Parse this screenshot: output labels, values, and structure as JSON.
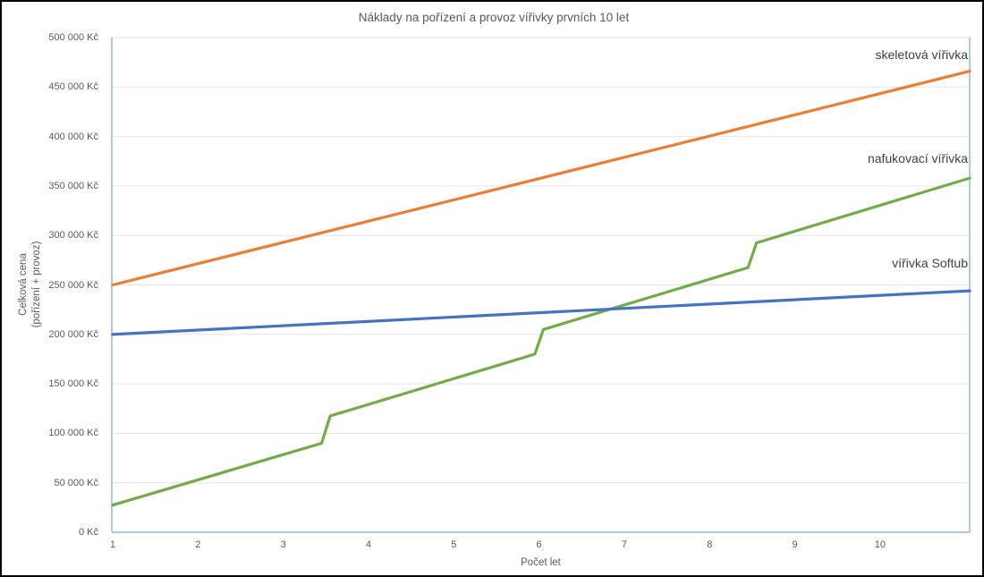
{
  "chart_data": {
    "type": "line",
    "title": "Náklady na pořízení a provoz vířivky prvních 10 let",
    "xlabel": "Počet let",
    "ylabel": "Celková cena (pořízení + provoz)",
    "ylabel_lines": [
      "Celková cena",
      "(pořízení + provoz)"
    ],
    "xlim": [
      1,
      11.05
    ],
    "ylim": [
      0,
      500000
    ],
    "x_ticks": [
      1,
      2,
      3,
      4,
      5,
      6,
      7,
      8,
      9,
      10
    ],
    "y_tick_values": [
      0,
      50000,
      100000,
      150000,
      200000,
      250000,
      300000,
      350000,
      400000,
      450000,
      500000
    ],
    "y_tick_labels": [
      "0 Kč",
      "50 000 Kč",
      "100 000 Kč",
      "150 000 Kč",
      "200 000 Kč",
      "250 000 Kč",
      "300 000 Kč",
      "350 000 Kč",
      "400 000 Kč",
      "450 000 Kč",
      "500 000 Kč"
    ],
    "grid": "horizontal",
    "legend_position": "labels-at-line-ends-right",
    "series": [
      {
        "name": "skeletová vířivka",
        "color": "#ED7D31",
        "points": [
          [
            1,
            250000
          ],
          [
            11.05,
            466000
          ]
        ]
      },
      {
        "name": "nafukovací vířivka",
        "color": "#70AD47",
        "points": [
          [
            1,
            27500
          ],
          [
            3.45,
            90000
          ],
          [
            3.55,
            117500
          ],
          [
            5.95,
            180000
          ],
          [
            6.05,
            205000
          ],
          [
            8.45,
            267500
          ],
          [
            8.55,
            292500
          ],
          [
            11.05,
            358000
          ]
        ]
      },
      {
        "name": "vířivka Softub",
        "color": "#4472C4",
        "points": [
          [
            1,
            200000
          ],
          [
            11.05,
            244000
          ]
        ]
      }
    ]
  },
  "colors": {
    "series_orange": "#ED7D31",
    "series_green": "#70AD47",
    "series_blue": "#4472C4",
    "axis_frame": "#AFC9E2",
    "gridline": "#E6E6E6",
    "axis_text": "#595959",
    "label_text": "#3F3F3F",
    "page_border": "#000000"
  }
}
